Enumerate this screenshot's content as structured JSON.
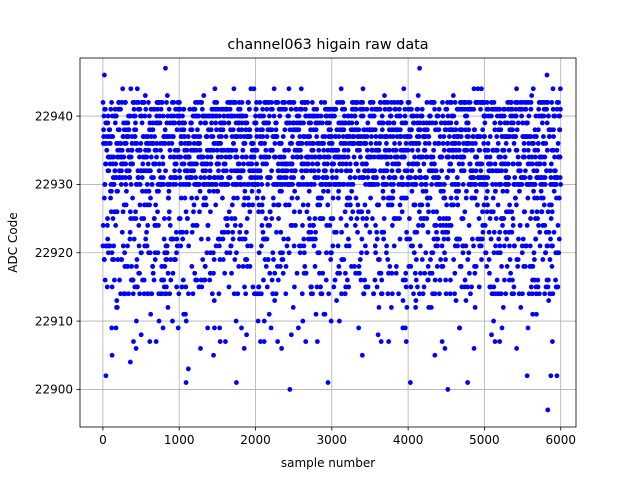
{
  "chart_data": {
    "type": "scatter",
    "title": "channel063 higain raw data",
    "xlabel": "sample number",
    "ylabel": "ADC Code",
    "xlim": [
      -300,
      6200
    ],
    "ylim": [
      22894.5,
      22948.5
    ],
    "xticks": [
      0,
      1000,
      2000,
      3000,
      4000,
      5000,
      6000
    ],
    "yticks": [
      22900,
      22910,
      22920,
      22930,
      22940
    ],
    "grid": true,
    "marker_color": "#0000ff",
    "n_samples": 6000,
    "series": [
      {
        "core_range": [
          22930,
          22942
        ],
        "mid_range": [
          22914,
          22930
        ],
        "notable_points": [
          {
            "x": 20,
            "y": 22946
          },
          {
            "x": 820,
            "y": 22947
          },
          {
            "x": 4150,
            "y": 22947
          },
          {
            "x": 5820,
            "y": 22946
          },
          {
            "x": 2450,
            "y": 22900
          },
          {
            "x": 4520,
            "y": 22900
          },
          {
            "x": 5830,
            "y": 22897
          },
          {
            "x": 40,
            "y": 22902
          },
          {
            "x": 5870,
            "y": 22902
          },
          {
            "x": 5950,
            "y": 22902
          },
          {
            "x": 1090,
            "y": 22901
          },
          {
            "x": 1750,
            "y": 22901
          },
          {
            "x": 2950,
            "y": 22901
          },
          {
            "x": 4030,
            "y": 22901
          },
          {
            "x": 4780,
            "y": 22901
          },
          {
            "x": 1120,
            "y": 22903
          },
          {
            "x": 360,
            "y": 22904
          },
          {
            "x": 1450,
            "y": 22905
          },
          {
            "x": 120,
            "y": 22905
          },
          {
            "x": 3400,
            "y": 22905
          },
          {
            "x": 4350,
            "y": 22905
          },
          {
            "x": 5200,
            "y": 22907
          },
          {
            "x": 5560,
            "y": 22902
          }
        ]
      }
    ]
  }
}
